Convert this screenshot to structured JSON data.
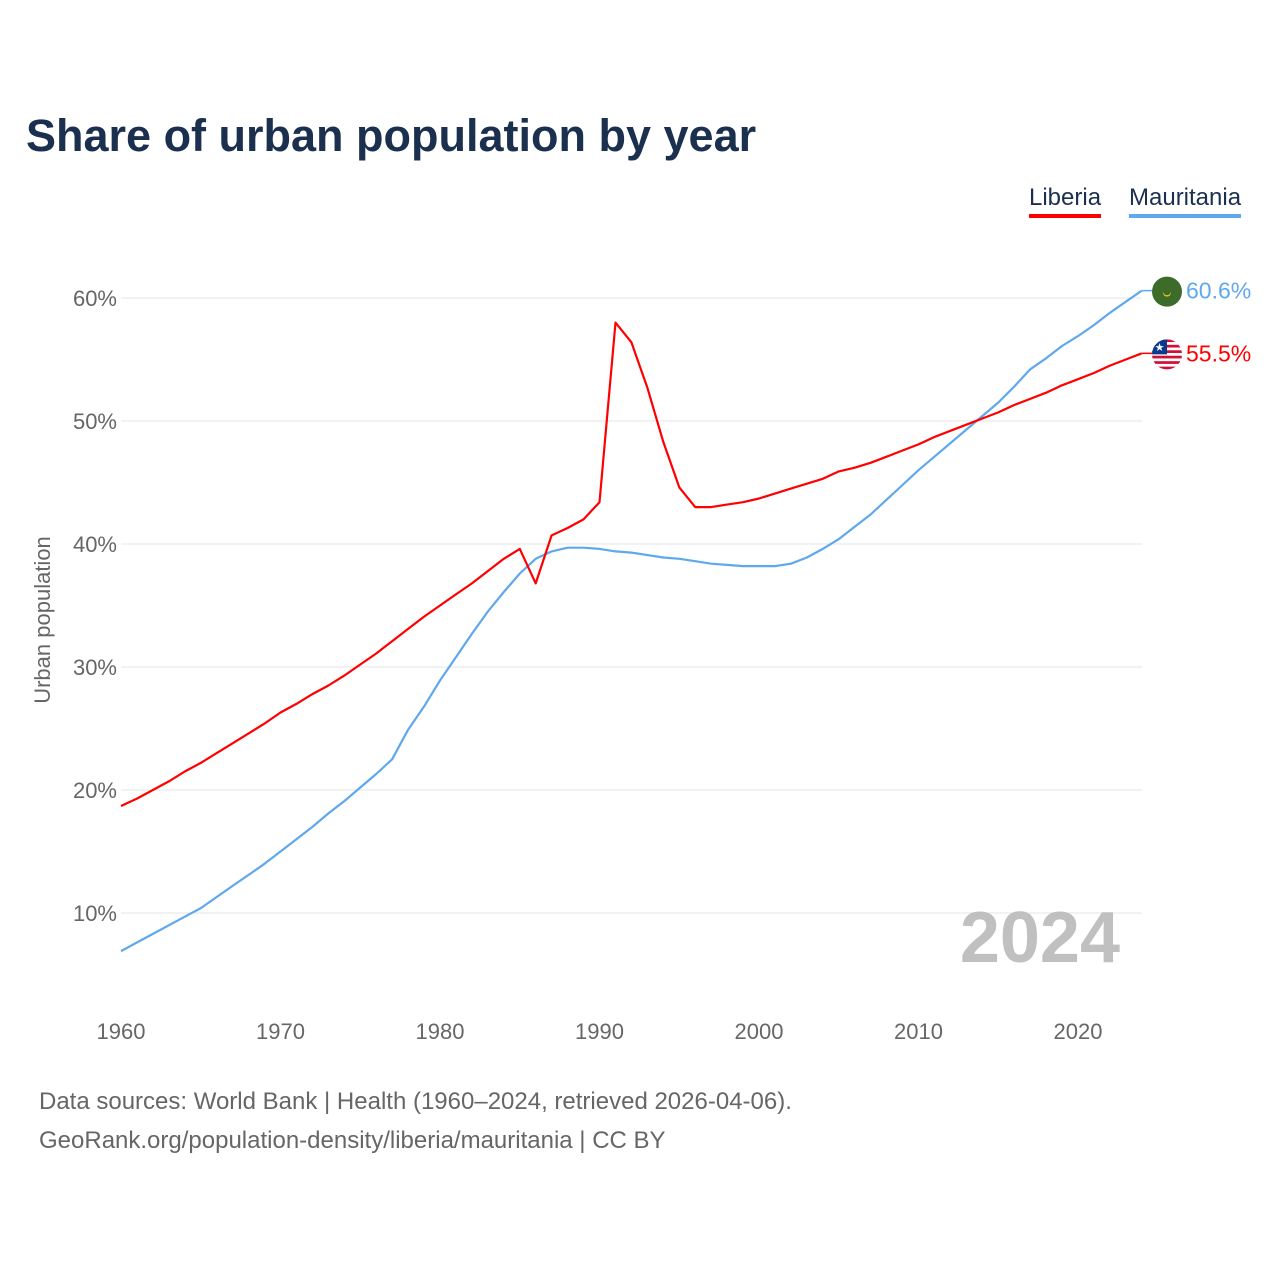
{
  "chart_data": {
    "type": "line",
    "title": "Share of urban population by year",
    "ylabel": "Urban population",
    "xlabel": "",
    "xlim": [
      1960,
      2024
    ],
    "ylim": [
      0,
      65
    ],
    "x_ticks": [
      "1960",
      "1970",
      "1980",
      "1990",
      "2000",
      "2010",
      "2020"
    ],
    "y_ticks": [
      "10%",
      "20%",
      "30%",
      "40%",
      "50%",
      "60%"
    ],
    "grid": true,
    "legend_position": "top-right",
    "year_label": "2024",
    "x_start": 1960,
    "series": [
      {
        "name": "Liberia",
        "color": "#ff0000",
        "end_label": "55.5%",
        "values": [
          18.7,
          19.3,
          20.0,
          20.7,
          21.5,
          22.2,
          23.0,
          23.8,
          24.6,
          25.4,
          26.3,
          27.0,
          27.8,
          28.5,
          29.3,
          30.2,
          31.1,
          32.1,
          33.1,
          34.1,
          35.0,
          35.9,
          36.8,
          37.8,
          38.8,
          39.6,
          36.8,
          40.7,
          41.3,
          42.0,
          43.4,
          58.0,
          56.4,
          52.7,
          48.3,
          44.6,
          43.0,
          43.0,
          43.2,
          43.4,
          43.7,
          44.1,
          44.5,
          44.9,
          45.3,
          45.9,
          46.2,
          46.6,
          47.1,
          47.6,
          48.1,
          48.7,
          49.2,
          49.7,
          50.2,
          50.7,
          51.3,
          51.8,
          52.3,
          52.9,
          53.4,
          53.9,
          54.5,
          55.0,
          55.5
        ]
      },
      {
        "name": "Mauritania",
        "color": "#5fa8ee",
        "end_label": "60.6%",
        "values": [
          6.9,
          7.6,
          8.3,
          9.0,
          9.7,
          10.4,
          11.3,
          12.2,
          13.1,
          14.0,
          15.0,
          16.0,
          17.0,
          18.1,
          19.1,
          20.2,
          21.3,
          22.5,
          24.9,
          26.8,
          28.9,
          30.8,
          32.7,
          34.5,
          36.1,
          37.6,
          38.8,
          39.4,
          39.7,
          39.7,
          39.6,
          39.4,
          39.3,
          39.1,
          38.9,
          38.8,
          38.6,
          38.4,
          38.3,
          38.2,
          38.2,
          38.2,
          38.4,
          38.9,
          39.6,
          40.4,
          41.4,
          42.4,
          43.6,
          44.8,
          46.0,
          47.1,
          48.2,
          49.3,
          50.4,
          51.5,
          52.8,
          54.2,
          55.1,
          56.1,
          56.9,
          57.8,
          58.8,
          59.7,
          60.6
        ]
      }
    ]
  },
  "sources": {
    "line1": "Data sources: World Bank | Health (1960–2024, retrieved 2026-04-06).",
    "line2": "GeoRank.org/population-density/liberia/mauritania | CC BY"
  }
}
